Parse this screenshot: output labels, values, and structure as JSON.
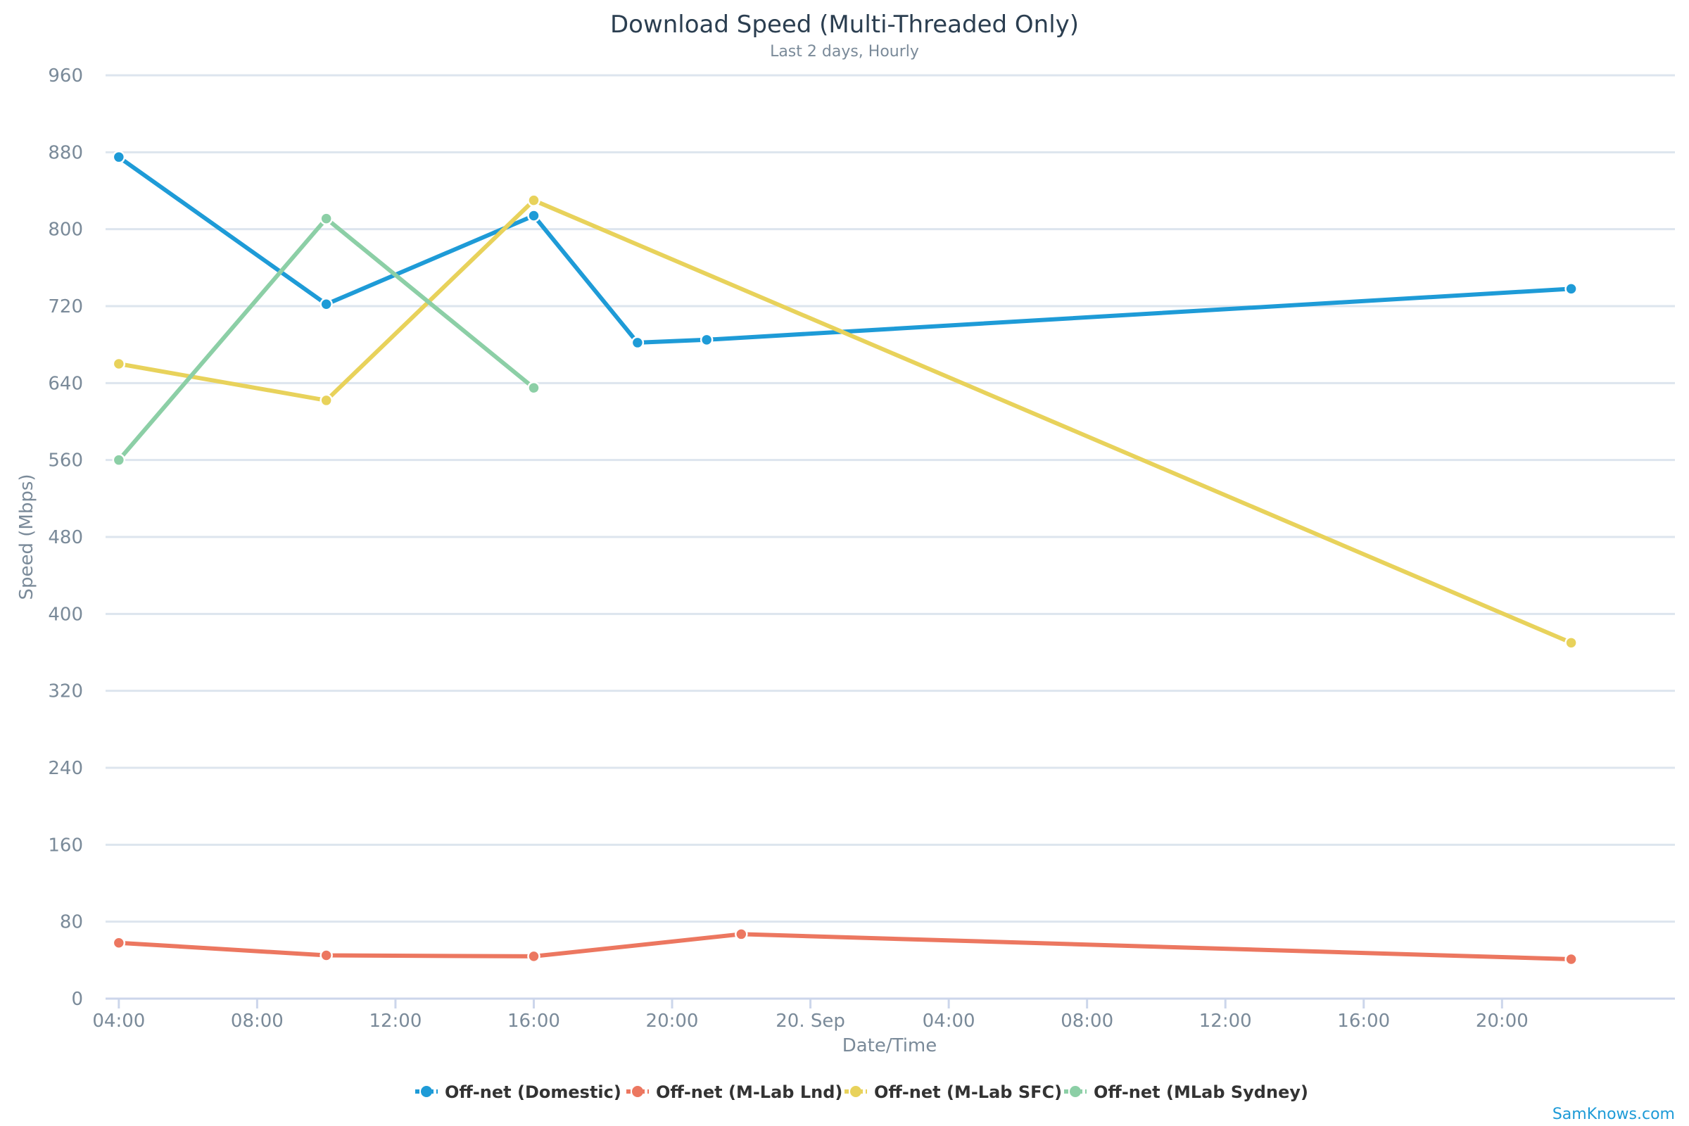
{
  "chart_data": {
    "type": "line",
    "title": "Download Speed (Multi-Threaded Only)",
    "subtitle": "Last 2 days, Hourly",
    "xlabel": "Date/Time",
    "ylabel": "Speed (Mbps)",
    "ylim": [
      0,
      960
    ],
    "yticks": [
      0,
      80,
      160,
      240,
      320,
      400,
      480,
      560,
      640,
      720,
      800,
      880,
      960
    ],
    "xlim": [
      "19 Sep 03:37",
      "21 Sep 01:00"
    ],
    "xticks": [
      {
        "t": "19 Sep 04:00",
        "label": "04:00"
      },
      {
        "t": "19 Sep 08:00",
        "label": "08:00"
      },
      {
        "t": "19 Sep 12:00",
        "label": "12:00"
      },
      {
        "t": "19 Sep 16:00",
        "label": "16:00"
      },
      {
        "t": "19 Sep 20:00",
        "label": "20:00"
      },
      {
        "t": "20 Sep 00:00",
        "label": "20. Sep"
      },
      {
        "t": "20 Sep 04:00",
        "label": "04:00"
      },
      {
        "t": "20 Sep 08:00",
        "label": "08:00"
      },
      {
        "t": "20 Sep 12:00",
        "label": "12:00"
      },
      {
        "t": "20 Sep 16:00",
        "label": "16:00"
      },
      {
        "t": "20 Sep 20:00",
        "label": "20:00"
      }
    ],
    "grid": true,
    "legend_position": "bottom-center",
    "series": [
      {
        "name": "Off-net (Domestic)",
        "color": "#1e9bd7",
        "points": [
          {
            "x": "19 Sep 04:00",
            "y": 875
          },
          {
            "x": "19 Sep 10:00",
            "y": 722
          },
          {
            "x": "19 Sep 16:00",
            "y": 814
          },
          {
            "x": "19 Sep 19:00",
            "y": 682
          },
          {
            "x": "19 Sep 21:00",
            "y": 685
          },
          {
            "x": "20 Sep 22:00",
            "y": 738
          }
        ]
      },
      {
        "name": "Off-net (M-Lab Lnd)",
        "color": "#ec7760",
        "points": [
          {
            "x": "19 Sep 04:00",
            "y": 58
          },
          {
            "x": "19 Sep 10:00",
            "y": 45
          },
          {
            "x": "19 Sep 16:00",
            "y": 44
          },
          {
            "x": "19 Sep 22:00",
            "y": 67
          },
          {
            "x": "20 Sep 22:00",
            "y": 41
          }
        ]
      },
      {
        "name": "Off-net (M-Lab SFC)",
        "color": "#e8d25b",
        "points": [
          {
            "x": "19 Sep 04:00",
            "y": 660
          },
          {
            "x": "19 Sep 10:00",
            "y": 622
          },
          {
            "x": "19 Sep 16:00",
            "y": 830
          },
          {
            "x": "20 Sep 22:00",
            "y": 370
          }
        ]
      },
      {
        "name": "Off-net (MLab Sydney)",
        "color": "#8ccfa6",
        "points": [
          {
            "x": "19 Sep 04:00",
            "y": 560
          },
          {
            "x": "19 Sep 10:00",
            "y": 811
          },
          {
            "x": "19 Sep 16:00",
            "y": 635
          }
        ]
      }
    ]
  },
  "credit": "SamKnows.com"
}
